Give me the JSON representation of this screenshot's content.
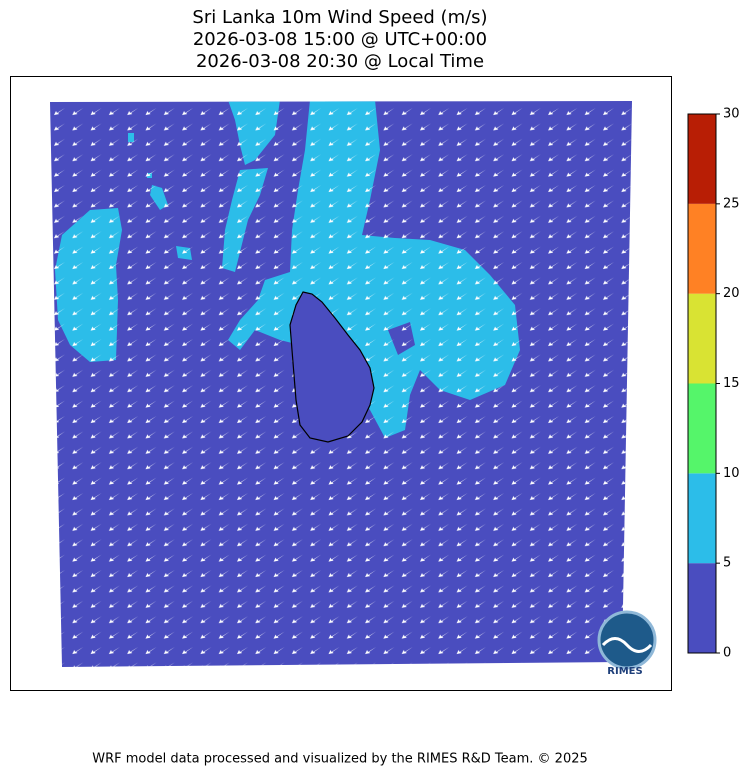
{
  "title": [
    "Sri Lanka 10m Wind Speed (m/s)",
    "2026-03-08 15:00 @ UTC+00:00",
    "2026-03-08 20:30 @ Local Time"
  ],
  "colorbar": {
    "lim": [
      0,
      30
    ],
    "ticks": [
      0,
      5,
      10,
      15,
      20,
      25,
      30
    ],
    "colors": [
      "#4a4dbf",
      "#2cbde9",
      "#55f56a",
      "#d9e333",
      "#ff8124",
      "#b81e05"
    ]
  },
  "logo": "RIMES",
  "footer": "WRF model data processed and visualized by the RIMES R&D Team. © 2025"
}
